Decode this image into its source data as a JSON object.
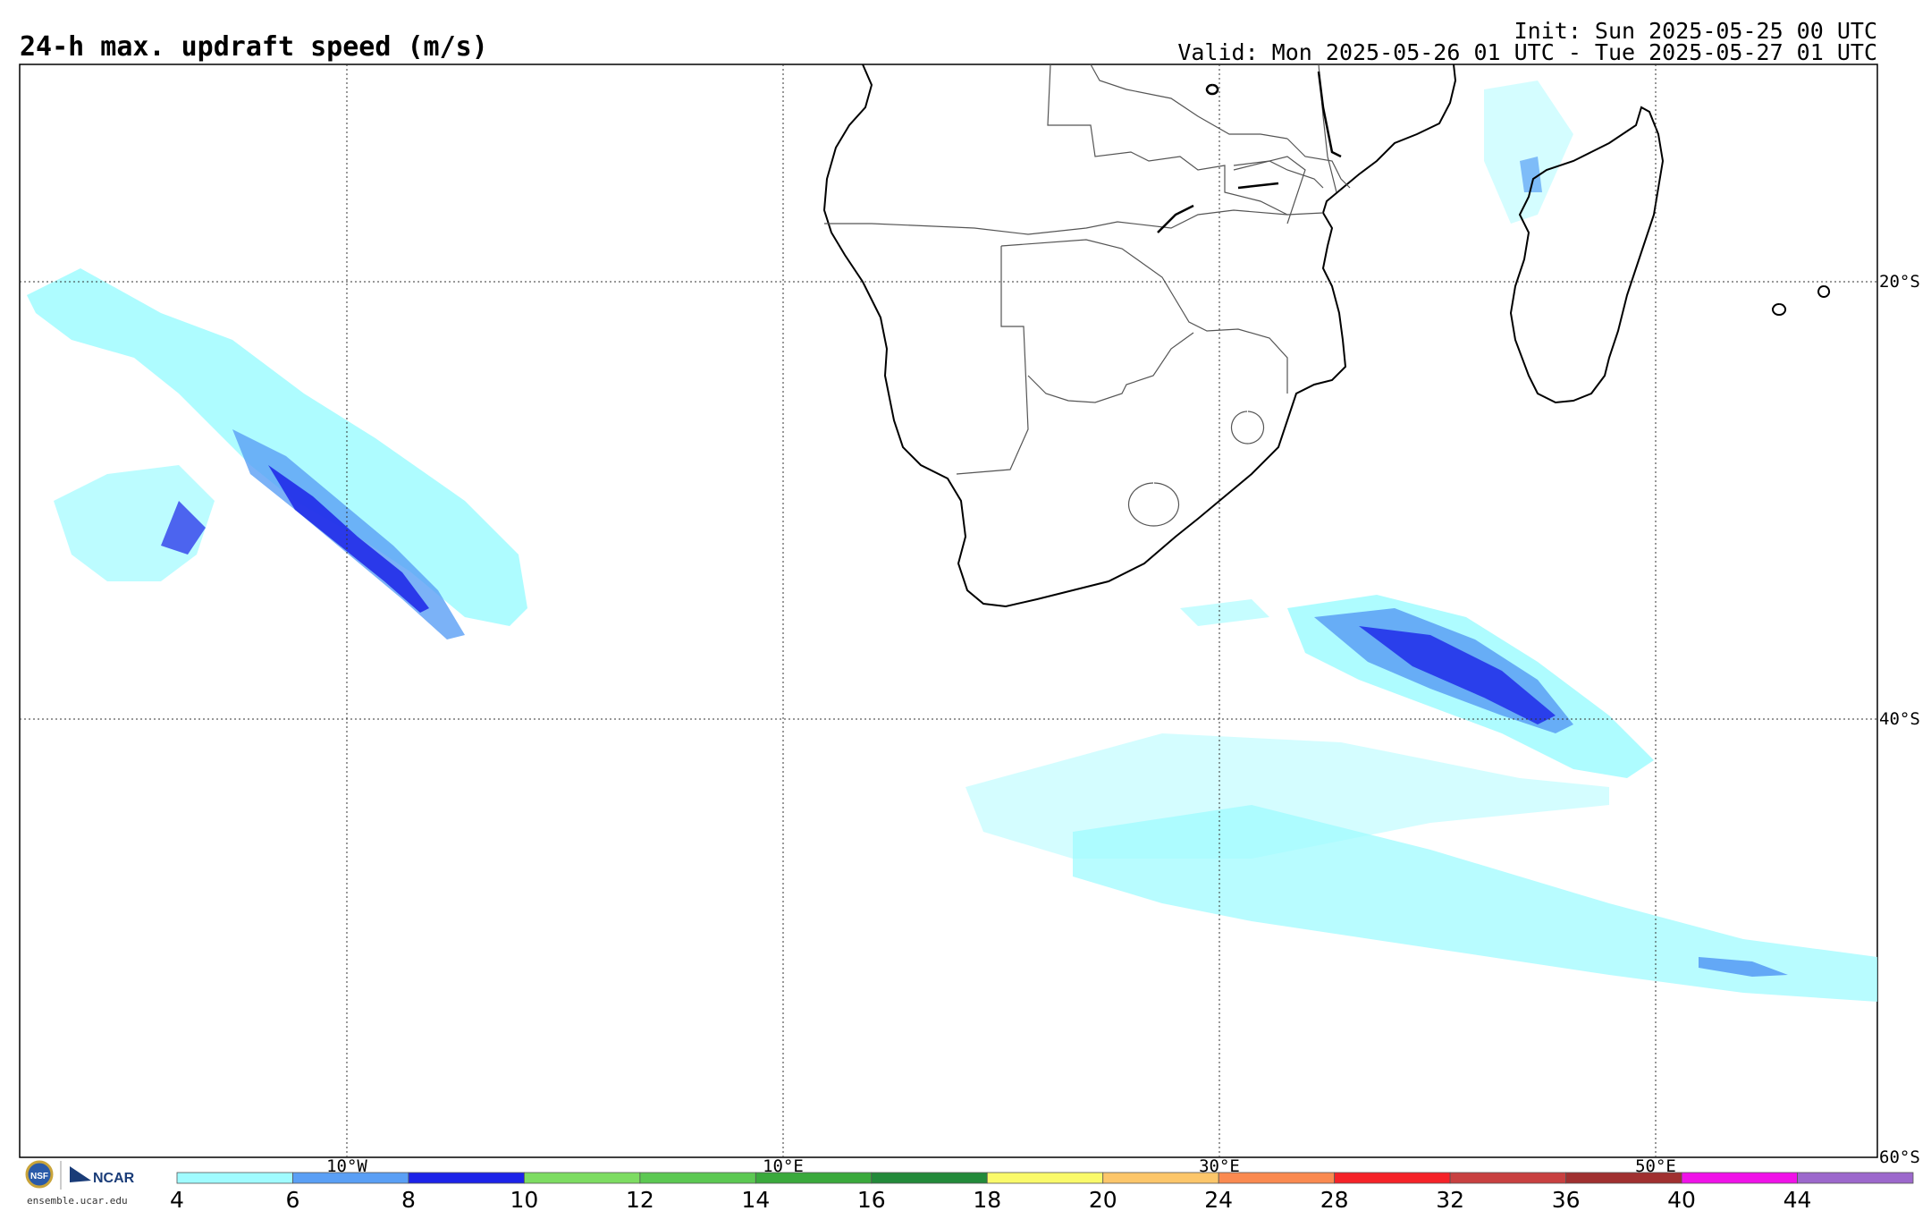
{
  "header": {
    "title": "24-h max. updraft speed (m/s)",
    "init": "Init: Sun 2025-05-25 00 UTC",
    "valid": "Valid: Mon 2025-05-26 01 UTC - Tue 2025-05-27 01 UTC"
  },
  "grid": {
    "lat_labels": [
      "20°S",
      "40°S",
      "60°S"
    ],
    "lon_labels": [
      "10°W",
      "10°E",
      "30°E",
      "50°E"
    ]
  },
  "colorbar": {
    "ticks": [
      "4",
      "6",
      "8",
      "10",
      "12",
      "14",
      "16",
      "18",
      "20",
      "24",
      "28",
      "32",
      "36",
      "40",
      "44"
    ],
    "colors": [
      "#a0fbff",
      "#5a9ff5",
      "#1c23e8",
      "#7ddc62",
      "#5cc852",
      "#3aa93c",
      "#238a3a",
      "#fafa6a",
      "#fcc66a",
      "#fa8a50",
      "#f52228",
      "#c84040",
      "#a03030",
      "#f012e8",
      "#9c68cc"
    ]
  },
  "footer": {
    "logo_nsf": "NSF",
    "logo_ncar": "NCAR",
    "url": "ensemble.ucar.edu"
  }
}
